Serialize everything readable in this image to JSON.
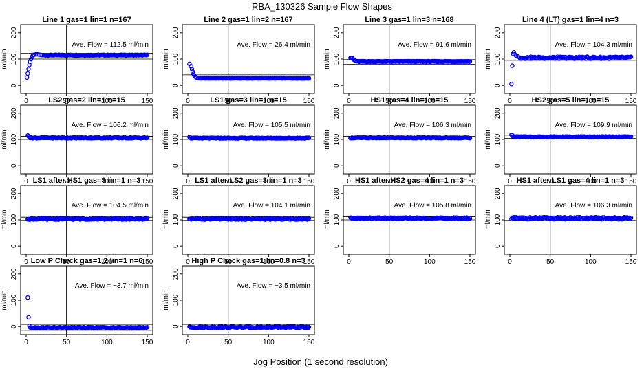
{
  "figure": {
    "title": "RBA_130326  Sample Flow Shapes",
    "xlabel": "Jog Position (1 second resolution)",
    "point_color": "#0000ee",
    "line_color": "#000000"
  },
  "chart_data": [
    {
      "type": "scatter",
      "title": "Line 1 gas=1 lin=1 n=167",
      "ylabel": "ml/min",
      "xlim": [
        0,
        150
      ],
      "ylim": [
        -10,
        210
      ],
      "xticks": [
        0,
        50,
        100,
        150
      ],
      "yticks": [
        0,
        100,
        200
      ],
      "vline": 50,
      "hlines": [
        100,
        122
      ],
      "annotation": "Ave. Flow =  112.5  ml/min",
      "start": [
        [
          1,
          30
        ],
        [
          2,
          45
        ],
        [
          3,
          62
        ],
        [
          4,
          78
        ],
        [
          5,
          90
        ],
        [
          6,
          100
        ],
        [
          7,
          107
        ],
        [
          8,
          112
        ],
        [
          9,
          115
        ],
        [
          10,
          117
        ],
        [
          12,
          118
        ],
        [
          14,
          118
        ],
        [
          16,
          117
        ],
        [
          18,
          116
        ],
        [
          20,
          115
        ]
      ],
      "rest": {
        "from": 22,
        "to": 150,
        "step": 1,
        "y": 115,
        "jitter": 1.5
      }
    },
    {
      "type": "scatter",
      "title": "Line 2 gas=1 lin=2 n=167",
      "ylabel": "ml/min",
      "xlim": [
        0,
        150
      ],
      "ylim": [
        -10,
        210
      ],
      "xticks": [
        0,
        50,
        100,
        150
      ],
      "yticks": [
        0,
        100,
        200
      ],
      "vline": 50,
      "hlines": [
        20,
        40
      ],
      "annotation": "Ave. Flow =  26.4  ml/min",
      "start": [
        [
          2,
          82
        ],
        [
          4,
          73
        ],
        [
          5,
          62
        ],
        [
          6,
          52
        ],
        [
          7,
          44
        ],
        [
          8,
          38
        ],
        [
          9,
          34
        ],
        [
          10,
          31
        ],
        [
          11,
          29
        ],
        [
          13,
          28
        ]
      ],
      "rest": {
        "from": 15,
        "to": 150,
        "step": 1,
        "y": 27,
        "jitter": 1
      }
    },
    {
      "type": "scatter",
      "title": "Line 3 gas=1 lin=3 n=168",
      "ylabel": "ml/min",
      "xlim": [
        0,
        150
      ],
      "ylim": [
        -10,
        210
      ],
      "xticks": [
        0,
        50,
        100,
        150
      ],
      "yticks": [
        0,
        100,
        200
      ],
      "vline": 50,
      "hlines": [
        80,
        98
      ],
      "annotation": "Ave. Flow =  91.6  ml/min",
      "start": [
        [
          2,
          104
        ],
        [
          3,
          105
        ],
        [
          4,
          104
        ],
        [
          5,
          101
        ],
        [
          6,
          98
        ],
        [
          7,
          96
        ],
        [
          8,
          94
        ],
        [
          10,
          92
        ]
      ],
      "rest": {
        "from": 12,
        "to": 150,
        "step": 1,
        "y": 91,
        "jitter": 1.2
      }
    },
    {
      "type": "scatter",
      "title": "Line 4 (LT) gas=1 lin=4 n=3",
      "ylabel": "ml/min",
      "xlim": [
        0,
        150
      ],
      "ylim": [
        -10,
        210
      ],
      "xticks": [
        0,
        50,
        100,
        150
      ],
      "yticks": [
        0,
        100,
        200
      ],
      "vline": 50,
      "hlines": [
        95,
        112
      ],
      "annotation": "Ave. Flow =  104.3  ml/min",
      "start": [
        [
          2,
          5
        ],
        [
          3,
          75
        ],
        [
          4,
          120
        ],
        [
          5,
          126
        ],
        [
          6,
          118
        ],
        [
          8,
          112
        ],
        [
          10,
          110
        ]
      ],
      "rest": {
        "from": 12,
        "to": 150,
        "step": 1,
        "y": 105,
        "jitter": 4
      }
    },
    {
      "type": "scatter",
      "title": "LS2 gas=2 lin=1 n=15",
      "ylabel": "ml/min",
      "xlim": [
        0,
        150
      ],
      "ylim": [
        -10,
        210
      ],
      "xticks": [
        0,
        50,
        100,
        150
      ],
      "yticks": [
        0,
        100,
        200
      ],
      "vline": 50,
      "hlines": [
        100,
        112
      ],
      "annotation": "Ave. Flow =  106.2  ml/min",
      "start": [
        [
          2,
          115
        ],
        [
          3,
          112
        ],
        [
          4,
          110
        ]
      ],
      "rest": {
        "from": 5,
        "to": 150,
        "step": 1,
        "y": 106,
        "jitter": 2
      }
    },
    {
      "type": "scatter",
      "title": "LS1 gas=3 lin=1 n=15",
      "ylabel": "ml/min",
      "xlim": [
        0,
        150
      ],
      "ylim": [
        -10,
        210
      ],
      "xticks": [
        0,
        50,
        100,
        150
      ],
      "yticks": [
        0,
        100,
        200
      ],
      "vline": 50,
      "hlines": [
        100,
        111
      ],
      "annotation": "Ave. Flow =  105.5  ml/min",
      "start": [
        [
          2,
          109
        ],
        [
          3,
          108
        ]
      ],
      "rest": {
        "from": 4,
        "to": 150,
        "step": 1,
        "y": 105,
        "jitter": 1.5
      }
    },
    {
      "type": "scatter",
      "title": "HS1 gas=4 lin=1 n=15",
      "ylabel": "ml/min",
      "xlim": [
        0,
        150
      ],
      "ylim": [
        -10,
        210
      ],
      "xticks": [
        0,
        50,
        100,
        150
      ],
      "yticks": [
        0,
        100,
        200
      ],
      "vline": 50,
      "hlines": [
        101,
        112
      ],
      "annotation": "Ave. Flow =  106.3  ml/min",
      "start": [],
      "rest": {
        "from": 2,
        "to": 150,
        "step": 1,
        "y": 106,
        "jitter": 1.5
      }
    },
    {
      "type": "scatter",
      "title": "HS2 gas=5 lin=1 n=15",
      "ylabel": "ml/min",
      "xlim": [
        0,
        150
      ],
      "ylim": [
        -10,
        210
      ],
      "xticks": [
        0,
        50,
        100,
        150
      ],
      "yticks": [
        0,
        100,
        200
      ],
      "vline": 50,
      "hlines": [
        104,
        116
      ],
      "annotation": "Ave. Flow =  109.9  ml/min",
      "start": [
        [
          2,
          118
        ],
        [
          3,
          116
        ]
      ],
      "rest": {
        "from": 4,
        "to": 150,
        "step": 1,
        "y": 110,
        "jitter": 1.5
      }
    },
    {
      "type": "scatter",
      "title": "LS1 after HS1 gas=3 lin=1 n=3",
      "ylabel": "ml/min",
      "xlim": [
        0,
        150
      ],
      "ylim": [
        -10,
        210
      ],
      "xticks": [
        0,
        50,
        100,
        150
      ],
      "yticks": [
        0,
        100,
        200
      ],
      "vline": 50,
      "hlines": [
        98,
        110
      ],
      "annotation": "Ave. Flow =  104.5  ml/min",
      "start": [],
      "rest": {
        "from": 2,
        "to": 150,
        "step": 1,
        "y": 104,
        "jitter": 3
      }
    },
    {
      "type": "scatter",
      "title": "LS1 after LS2 gas=3 lin=1 n=3",
      "ylabel": "ml/min",
      "xlim": [
        0,
        150
      ],
      "ylim": [
        -10,
        210
      ],
      "xticks": [
        0,
        50,
        100,
        150
      ],
      "yticks": [
        0,
        100,
        200
      ],
      "vline": 50,
      "hlines": [
        98,
        110
      ],
      "annotation": "Ave. Flow =  104.1  ml/min",
      "start": [],
      "rest": {
        "from": 2,
        "to": 150,
        "step": 1,
        "y": 104,
        "jitter": 3
      }
    },
    {
      "type": "scatter",
      "title": "HS1 after HS2 gas=4 lin=1 n=3",
      "ylabel": "ml/min",
      "xlim": [
        0,
        150
      ],
      "ylim": [
        -10,
        210
      ],
      "xticks": [
        0,
        50,
        100,
        150
      ],
      "yticks": [
        0,
        100,
        200
      ],
      "vline": 50,
      "hlines": [
        100,
        112
      ],
      "annotation": "Ave. Flow =  105.8  ml/min",
      "start": [],
      "rest": {
        "from": 2,
        "to": 150,
        "step": 1,
        "y": 106,
        "jitter": 3
      }
    },
    {
      "type": "scatter",
      "title": "HS1 after LS1 gas=4 lin=1 n=3",
      "ylabel": "ml/min",
      "xlim": [
        0,
        150
      ],
      "ylim": [
        -10,
        210
      ],
      "xticks": [
        0,
        50,
        100,
        150
      ],
      "yticks": [
        0,
        100,
        200
      ],
      "vline": 50,
      "hlines": [
        98,
        114
      ],
      "annotation": "Ave. Flow =  106.3  ml/min",
      "start": [],
      "rest": {
        "from": 2,
        "to": 150,
        "step": 1,
        "y": 106,
        "jitter": 4
      }
    },
    {
      "type": "scatter",
      "title": "Low P Check gas=1.2 lin=1 n=6",
      "ylabel": "ml/min",
      "xlim": [
        0,
        150
      ],
      "ylim": [
        -10,
        210
      ],
      "xticks": [
        0,
        50,
        100,
        150
      ],
      "yticks": [
        0,
        100,
        200
      ],
      "vline": 50,
      "hlines": [
        -15,
        8
      ],
      "annotation": "Ave. Flow =  −3.7  ml/min",
      "start": [
        [
          2,
          110
        ],
        [
          3,
          35
        ],
        [
          4,
          2
        ],
        [
          5,
          -4
        ]
      ],
      "rest": {
        "from": 6,
        "to": 150,
        "step": 1,
        "y": -4,
        "jitter": 1.5
      }
    },
    {
      "type": "scatter",
      "title": "High P Check gas=1 lin=0.8 n=3",
      "ylabel": "ml/min",
      "xlim": [
        0,
        150
      ],
      "ylim": [
        -10,
        210
      ],
      "xticks": [
        0,
        50,
        100,
        150
      ],
      "yticks": [
        0,
        100,
        200
      ],
      "vline": 50,
      "hlines": [
        -14,
        8
      ],
      "annotation": "Ave. Flow =  −3.5  ml/min",
      "start": [],
      "rest": {
        "from": 2,
        "to": 150,
        "step": 1,
        "y": -3,
        "jitter": 2.5
      }
    }
  ]
}
